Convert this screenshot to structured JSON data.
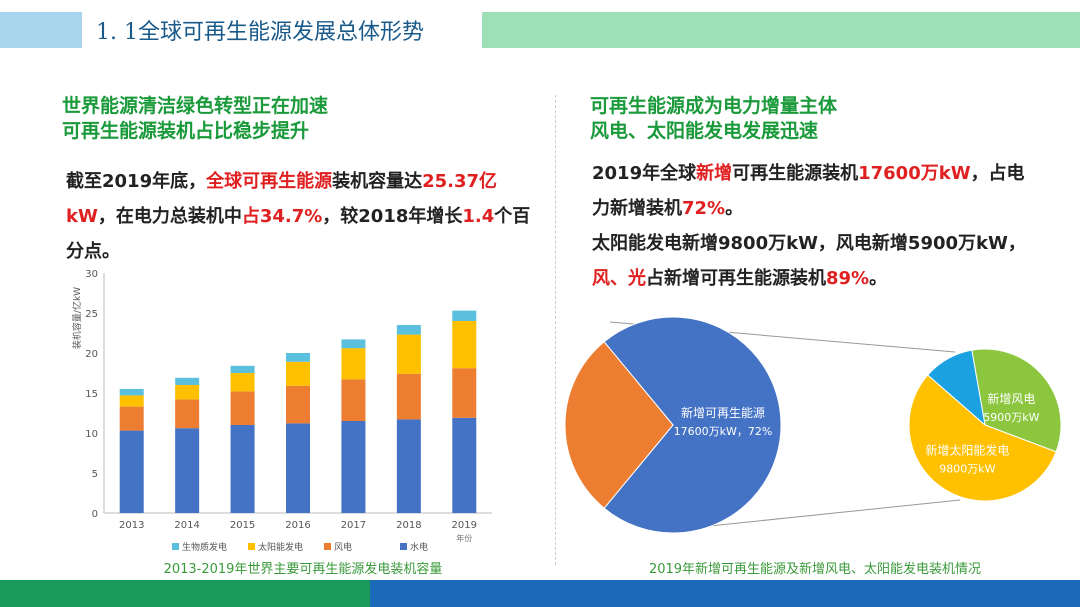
{
  "header": {
    "title": "1. 1全球可再生能源发展总体形势"
  },
  "left": {
    "heading": [
      "世界能源清洁绿色转型正在加速",
      "可再生能源装机占比稳步提升"
    ],
    "paragraph": [
      {
        "text": "截至2019年底，",
        "color": "#222222"
      },
      {
        "text": "全球可再生能源",
        "color": "#e02020"
      },
      {
        "text": "装机容量达",
        "color": "#222222"
      },
      {
        "text": "25.37亿kW",
        "color": "#e02020"
      },
      {
        "text": "，在电力总装机中",
        "color": "#222222"
      },
      {
        "text": "占34.7%",
        "color": "#e02020"
      },
      {
        "text": "，较2018年增长",
        "color": "#222222"
      },
      {
        "text": "1.4",
        "color": "#e02020"
      },
      {
        "text": "个百分点。",
        "color": "#222222"
      }
    ],
    "caption": "2013-2019年世界主要可再生能源发电装机容量"
  },
  "right": {
    "heading": [
      "可再生能源成为电力增量主体",
      "风电、太阳能发电发展迅速"
    ],
    "paragraphs": [
      [
        {
          "text": "2019年全球",
          "color": "#222222"
        },
        {
          "text": "新增",
          "color": "#e02020"
        },
        {
          "text": "可再生能源装机",
          "color": "#222222"
        },
        {
          "text": "17600万kW",
          "color": "#e02020"
        },
        {
          "text": "，占电力新增装机",
          "color": "#222222"
        },
        {
          "text": "72%",
          "color": "#e02020"
        },
        {
          "text": "。",
          "color": "#222222"
        }
      ],
      [
        {
          "text": "太阳能发电新增9800万kW，风电新增5900万kW，",
          "color": "#222222"
        },
        {
          "text": "风、光",
          "color": "#e02020"
        },
        {
          "text": "占新增可再生能源装机",
          "color": "#222222"
        },
        {
          "text": "89%",
          "color": "#e02020"
        },
        {
          "text": "。",
          "color": "#222222"
        }
      ]
    ],
    "caption": "2019年新增可再生能源及新增风电、太阳能发电装机情况"
  },
  "chart_data": [
    {
      "type": "bar",
      "stacked": true,
      "y_label": "装机容量/亿kW",
      "x_label": "年份",
      "categories": [
        "2013",
        "2014",
        "2015",
        "2016",
        "2017",
        "2018",
        "2019"
      ],
      "series": [
        {
          "name": "水电",
          "color": "#4472c4",
          "values": [
            10.3,
            10.6,
            11.0,
            11.2,
            11.5,
            11.7,
            11.9
          ]
        },
        {
          "name": "风电",
          "color": "#ed7d31",
          "values": [
            3.0,
            3.6,
            4.2,
            4.7,
            5.2,
            5.7,
            6.2
          ]
        },
        {
          "name": "太阳能发电",
          "color": "#ffc000",
          "values": [
            1.4,
            1.8,
            2.3,
            3.0,
            3.9,
            4.9,
            5.9
          ]
        },
        {
          "name": "生物质发电",
          "color": "#5bc0de",
          "values": [
            0.8,
            0.9,
            0.9,
            1.1,
            1.1,
            1.2,
            1.3
          ]
        }
      ],
      "ylim": [
        0,
        30
      ],
      "yticks": [
        0,
        5,
        10,
        15,
        20,
        25,
        30
      ],
      "grid": false
    },
    {
      "type": "pie",
      "categories": [
        "新增可再生能源",
        null
      ],
      "values": [
        72,
        28
      ],
      "value_labels": [
        "17600万kW，72%",
        null
      ],
      "colors": [
        "#4472c4",
        "#ed7d31"
      ]
    },
    {
      "type": "pie",
      "categories": [
        "新增风电",
        "新增太阳能发电",
        null
      ],
      "values": [
        5900,
        9800,
        1900
      ],
      "value_labels": [
        "5900万kW",
        "9800万kW",
        null
      ],
      "colors": [
        "#8cc63f",
        "#ffc000",
        "#1ba1e2"
      ]
    }
  ]
}
